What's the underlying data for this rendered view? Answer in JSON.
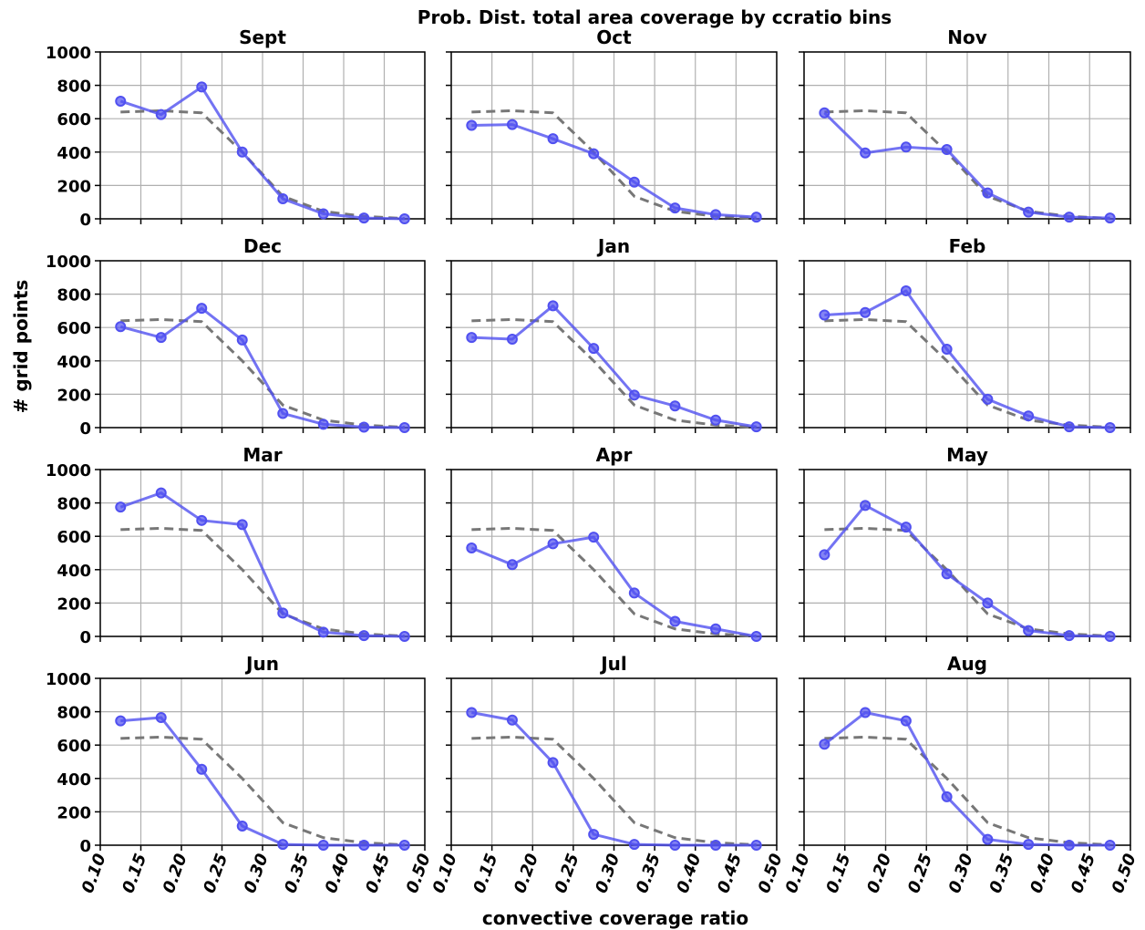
{
  "title": "Prob. Dist. total area coverage by ccratio bins",
  "xlabel": "convective coverage ratio",
  "ylabel": "# grid points",
  "chart_data": [
    {
      "type": "line",
      "title": "Sept",
      "x": [
        0.125,
        0.175,
        0.225,
        0.275,
        0.325,
        0.375,
        0.425,
        0.475
      ],
      "series": [
        {
          "color": "#777777",
          "dashed": true,
          "values": [
            640,
            648,
            635,
            400,
            135,
            45,
            15,
            2
          ]
        },
        {
          "color": "#5050f0",
          "markers": true,
          "values": [
            705,
            625,
            790,
            400,
            120,
            30,
            5,
            0
          ]
        }
      ],
      "xlim": [
        0.1,
        0.5
      ],
      "xticks": [
        {
          "value": 0.1,
          "label": "0.10"
        },
        0.15,
        {
          "value": 0.2,
          "label": "0.20"
        },
        0.25,
        {
          "value": 0.3,
          "label": "0.30"
        },
        0.35,
        {
          "value": 0.4,
          "label": "0.40"
        },
        0.45,
        {
          "value": 0.5,
          "label": "0.50"
        }
      ],
      "ylim": [
        0,
        1000
      ],
      "yticks": [
        0,
        200,
        400,
        600,
        800,
        1000
      ],
      "grid": true
    },
    {
      "type": "line",
      "title": "Oct",
      "x": [
        0.125,
        0.175,
        0.225,
        0.275,
        0.325,
        0.375,
        0.425,
        0.475
      ],
      "series": [
        {
          "color": "#777777",
          "dashed": true,
          "values": [
            640,
            648,
            635,
            400,
            135,
            45,
            15,
            2
          ]
        },
        {
          "color": "#5050f0",
          "markers": true,
          "values": [
            560,
            565,
            480,
            390,
            220,
            65,
            25,
            10
          ]
        }
      ],
      "xlim": [
        0.1,
        0.5
      ],
      "xticks": [
        {
          "value": 0.1,
          "label": "0.10"
        },
        0.15,
        {
          "value": 0.2,
          "label": "0.20"
        },
        0.25,
        {
          "value": 0.3,
          "label": "0.30"
        },
        0.35,
        {
          "value": 0.4,
          "label": "0.40"
        },
        0.45,
        {
          "value": 0.5,
          "label": "0.50"
        }
      ],
      "ylim": [
        0,
        1000
      ],
      "yticks": [
        0,
        200,
        400,
        600,
        800,
        1000
      ],
      "grid": true
    },
    {
      "type": "line",
      "title": "Nov",
      "x": [
        0.125,
        0.175,
        0.225,
        0.275,
        0.325,
        0.375,
        0.425,
        0.475
      ],
      "series": [
        {
          "color": "#777777",
          "dashed": true,
          "values": [
            640,
            648,
            635,
            400,
            135,
            45,
            15,
            2
          ]
        },
        {
          "color": "#5050f0",
          "markers": true,
          "values": [
            635,
            395,
            430,
            415,
            155,
            40,
            10,
            5
          ]
        }
      ],
      "xlim": [
        0.1,
        0.5
      ],
      "xticks": [
        {
          "value": 0.1,
          "label": "0.10"
        },
        0.15,
        {
          "value": 0.2,
          "label": "0.20"
        },
        0.25,
        {
          "value": 0.3,
          "label": "0.30"
        },
        0.35,
        {
          "value": 0.4,
          "label": "0.40"
        },
        0.45,
        {
          "value": 0.5,
          "label": "0.50"
        }
      ],
      "ylim": [
        0,
        1000
      ],
      "yticks": [
        0,
        200,
        400,
        600,
        800,
        1000
      ],
      "grid": true
    },
    {
      "type": "line",
      "title": "Dec",
      "x": [
        0.125,
        0.175,
        0.225,
        0.275,
        0.325,
        0.375,
        0.425,
        0.475
      ],
      "series": [
        {
          "color": "#777777",
          "dashed": true,
          "values": [
            640,
            648,
            635,
            400,
            135,
            45,
            15,
            2
          ]
        },
        {
          "color": "#5050f0",
          "markers": true,
          "values": [
            605,
            540,
            715,
            525,
            85,
            20,
            3,
            0
          ]
        }
      ],
      "xlim": [
        0.1,
        0.5
      ],
      "xticks": [
        {
          "value": 0.1,
          "label": "0.10"
        },
        0.15,
        {
          "value": 0.2,
          "label": "0.20"
        },
        0.25,
        {
          "value": 0.3,
          "label": "0.30"
        },
        0.35,
        {
          "value": 0.4,
          "label": "0.40"
        },
        0.45,
        {
          "value": 0.5,
          "label": "0.50"
        }
      ],
      "ylim": [
        0,
        1000
      ],
      "yticks": [
        0,
        200,
        400,
        600,
        800,
        1000
      ],
      "grid": true
    },
    {
      "type": "line",
      "title": "Jan",
      "x": [
        0.125,
        0.175,
        0.225,
        0.275,
        0.325,
        0.375,
        0.425,
        0.475
      ],
      "series": [
        {
          "color": "#777777",
          "dashed": true,
          "values": [
            640,
            648,
            635,
            400,
            135,
            45,
            15,
            2
          ]
        },
        {
          "color": "#5050f0",
          "markers": true,
          "values": [
            540,
            530,
            730,
            475,
            195,
            130,
            45,
            5
          ]
        }
      ],
      "xlim": [
        0.1,
        0.5
      ],
      "xticks": [
        {
          "value": 0.1,
          "label": "0.10"
        },
        0.15,
        {
          "value": 0.2,
          "label": "0.20"
        },
        0.25,
        {
          "value": 0.3,
          "label": "0.30"
        },
        0.35,
        {
          "value": 0.4,
          "label": "0.40"
        },
        0.45,
        {
          "value": 0.5,
          "label": "0.50"
        }
      ],
      "ylim": [
        0,
        1000
      ],
      "yticks": [
        0,
        200,
        400,
        600,
        800,
        1000
      ],
      "grid": true
    },
    {
      "type": "line",
      "title": "Feb",
      "x": [
        0.125,
        0.175,
        0.225,
        0.275,
        0.325,
        0.375,
        0.425,
        0.475
      ],
      "series": [
        {
          "color": "#777777",
          "dashed": true,
          "values": [
            640,
            648,
            635,
            400,
            135,
            45,
            15,
            2
          ]
        },
        {
          "color": "#5050f0",
          "markers": true,
          "values": [
            675,
            690,
            820,
            470,
            170,
            70,
            5,
            0
          ]
        }
      ],
      "xlim": [
        0.1,
        0.5
      ],
      "xticks": [
        {
          "value": 0.1,
          "label": "0.10"
        },
        0.15,
        {
          "value": 0.2,
          "label": "0.20"
        },
        0.25,
        {
          "value": 0.3,
          "label": "0.30"
        },
        0.35,
        {
          "value": 0.4,
          "label": "0.40"
        },
        0.45,
        {
          "value": 0.5,
          "label": "0.50"
        }
      ],
      "ylim": [
        0,
        1000
      ],
      "yticks": [
        0,
        200,
        400,
        600,
        800,
        1000
      ],
      "grid": true
    },
    {
      "type": "line",
      "title": "Mar",
      "x": [
        0.125,
        0.175,
        0.225,
        0.275,
        0.325,
        0.375,
        0.425,
        0.475
      ],
      "series": [
        {
          "color": "#777777",
          "dashed": true,
          "values": [
            640,
            648,
            635,
            400,
            135,
            45,
            15,
            2
          ]
        },
        {
          "color": "#5050f0",
          "markers": true,
          "values": [
            775,
            860,
            695,
            670,
            140,
            25,
            5,
            0
          ]
        }
      ],
      "xlim": [
        0.1,
        0.5
      ],
      "xticks": [
        {
          "value": 0.1,
          "label": "0.10"
        },
        0.15,
        {
          "value": 0.2,
          "label": "0.20"
        },
        0.25,
        {
          "value": 0.3,
          "label": "0.30"
        },
        0.35,
        {
          "value": 0.4,
          "label": "0.40"
        },
        0.45,
        {
          "value": 0.5,
          "label": "0.50"
        }
      ],
      "ylim": [
        0,
        1000
      ],
      "yticks": [
        0,
        200,
        400,
        600,
        800,
        1000
      ],
      "grid": true
    },
    {
      "type": "line",
      "title": "Apr",
      "x": [
        0.125,
        0.175,
        0.225,
        0.275,
        0.325,
        0.375,
        0.425,
        0.475
      ],
      "series": [
        {
          "color": "#777777",
          "dashed": true,
          "values": [
            640,
            648,
            635,
            400,
            135,
            45,
            15,
            2
          ]
        },
        {
          "color": "#5050f0",
          "markers": true,
          "values": [
            530,
            430,
            555,
            595,
            260,
            90,
            45,
            0
          ]
        }
      ],
      "xlim": [
        0.1,
        0.5
      ],
      "xticks": [
        {
          "value": 0.1,
          "label": "0.10"
        },
        0.15,
        {
          "value": 0.2,
          "label": "0.20"
        },
        0.25,
        {
          "value": 0.3,
          "label": "0.30"
        },
        0.35,
        {
          "value": 0.4,
          "label": "0.40"
        },
        0.45,
        {
          "value": 0.5,
          "label": "0.50"
        }
      ],
      "ylim": [
        0,
        1000
      ],
      "yticks": [
        0,
        200,
        400,
        600,
        800,
        1000
      ],
      "grid": true
    },
    {
      "type": "line",
      "title": "May",
      "x": [
        0.125,
        0.175,
        0.225,
        0.275,
        0.325,
        0.375,
        0.425,
        0.475
      ],
      "series": [
        {
          "color": "#777777",
          "dashed": true,
          "values": [
            640,
            648,
            635,
            400,
            135,
            45,
            15,
            2
          ]
        },
        {
          "color": "#5050f0",
          "markers": true,
          "values": [
            490,
            785,
            655,
            375,
            200,
            35,
            5,
            0
          ]
        }
      ],
      "xlim": [
        0.1,
        0.5
      ],
      "xticks": [
        {
          "value": 0.1,
          "label": "0.10"
        },
        0.15,
        {
          "value": 0.2,
          "label": "0.20"
        },
        0.25,
        {
          "value": 0.3,
          "label": "0.30"
        },
        0.35,
        {
          "value": 0.4,
          "label": "0.40"
        },
        0.45,
        {
          "value": 0.5,
          "label": "0.50"
        }
      ],
      "ylim": [
        0,
        1000
      ],
      "yticks": [
        0,
        200,
        400,
        600,
        800,
        1000
      ],
      "grid": true
    },
    {
      "type": "line",
      "title": "Jun",
      "x": [
        0.125,
        0.175,
        0.225,
        0.275,
        0.325,
        0.375,
        0.425,
        0.475
      ],
      "series": [
        {
          "color": "#777777",
          "dashed": true,
          "values": [
            640,
            648,
            635,
            400,
            135,
            45,
            15,
            2
          ]
        },
        {
          "color": "#5050f0",
          "markers": true,
          "values": [
            745,
            765,
            455,
            115,
            5,
            0,
            0,
            0
          ]
        }
      ],
      "xlim": [
        0.1,
        0.5
      ],
      "xticks": [
        {
          "value": 0.1,
          "label": "0.10"
        },
        0.15,
        {
          "value": 0.2,
          "label": "0.20"
        },
        0.25,
        {
          "value": 0.3,
          "label": "0.30"
        },
        0.35,
        {
          "value": 0.4,
          "label": "0.40"
        },
        0.45,
        {
          "value": 0.5,
          "label": "0.50"
        }
      ],
      "ylim": [
        0,
        1000
      ],
      "yticks": [
        0,
        200,
        400,
        600,
        800,
        1000
      ],
      "grid": true
    },
    {
      "type": "line",
      "title": "Jul",
      "x": [
        0.125,
        0.175,
        0.225,
        0.275,
        0.325,
        0.375,
        0.425,
        0.475
      ],
      "series": [
        {
          "color": "#777777",
          "dashed": true,
          "values": [
            640,
            648,
            635,
            400,
            135,
            45,
            15,
            2
          ]
        },
        {
          "color": "#5050f0",
          "markers": true,
          "values": [
            795,
            750,
            495,
            65,
            5,
            0,
            0,
            0
          ]
        }
      ],
      "xlim": [
        0.1,
        0.5
      ],
      "xticks": [
        {
          "value": 0.1,
          "label": "0.10"
        },
        0.15,
        {
          "value": 0.2,
          "label": "0.20"
        },
        0.25,
        {
          "value": 0.3,
          "label": "0.30"
        },
        0.35,
        {
          "value": 0.4,
          "label": "0.40"
        },
        0.45,
        {
          "value": 0.5,
          "label": "0.50"
        }
      ],
      "ylim": [
        0,
        1000
      ],
      "yticks": [
        0,
        200,
        400,
        600,
        800,
        1000
      ],
      "grid": true
    },
    {
      "type": "line",
      "title": "Aug",
      "x": [
        0.125,
        0.175,
        0.225,
        0.275,
        0.325,
        0.375,
        0.425,
        0.475
      ],
      "series": [
        {
          "color": "#777777",
          "dashed": true,
          "values": [
            640,
            648,
            635,
            400,
            135,
            45,
            15,
            2
          ]
        },
        {
          "color": "#5050f0",
          "markers": true,
          "values": [
            605,
            795,
            745,
            290,
            35,
            5,
            0,
            0
          ]
        }
      ],
      "xlim": [
        0.1,
        0.5
      ],
      "xticks": [
        {
          "value": 0.1,
          "label": "0.10"
        },
        0.15,
        {
          "value": 0.2,
          "label": "0.20"
        },
        0.25,
        {
          "value": 0.3,
          "label": "0.30"
        },
        0.35,
        {
          "value": 0.4,
          "label": "0.40"
        },
        0.45,
        {
          "value": 0.5,
          "label": "0.50"
        }
      ],
      "ylim": [
        0,
        1000
      ],
      "yticks": [
        0,
        200,
        400,
        600,
        800,
        1000
      ],
      "grid": true
    }
  ]
}
